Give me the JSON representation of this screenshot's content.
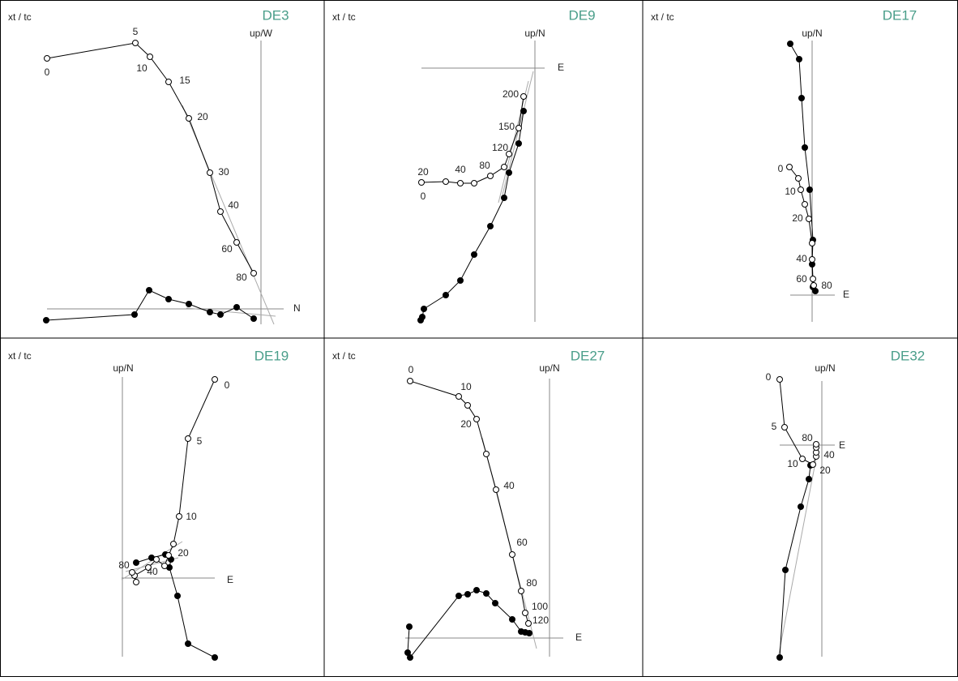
{
  "panels": [
    {
      "title": "DE3",
      "corner_label": "xt / tc",
      "vertical_axis": "up/W",
      "horizontal_axis": "N",
      "step_labels": [
        0,
        5,
        10,
        15,
        20,
        30,
        40,
        60,
        80
      ]
    },
    {
      "title": "DE9",
      "corner_label": "xt / tc",
      "vertical_axis": "up/N",
      "horizontal_axis": "E",
      "step_labels": [
        20,
        0,
        40,
        80,
        120,
        150,
        200
      ]
    },
    {
      "title": "DE17",
      "corner_label": "xt / tc",
      "vertical_axis": "up/N",
      "horizontal_axis": "E",
      "step_labels": [
        0,
        10,
        20,
        40,
        60,
        80
      ]
    },
    {
      "title": "DE19",
      "corner_label": "xt / tc",
      "vertical_axis": "up/N",
      "horizontal_axis": "E",
      "step_labels": [
        0,
        5,
        10,
        20,
        40,
        80
      ]
    },
    {
      "title": "DE27",
      "corner_label": "xt / tc",
      "vertical_axis": "up/N",
      "horizontal_axis": "E",
      "step_labels": [
        0,
        10,
        20,
        40,
        60,
        80,
        100,
        120
      ]
    },
    {
      "title": "DE32",
      "vertical_axis": "up/N",
      "horizontal_axis": "E",
      "step_labels": [
        0,
        5,
        10,
        20,
        40,
        80
      ]
    }
  ]
}
